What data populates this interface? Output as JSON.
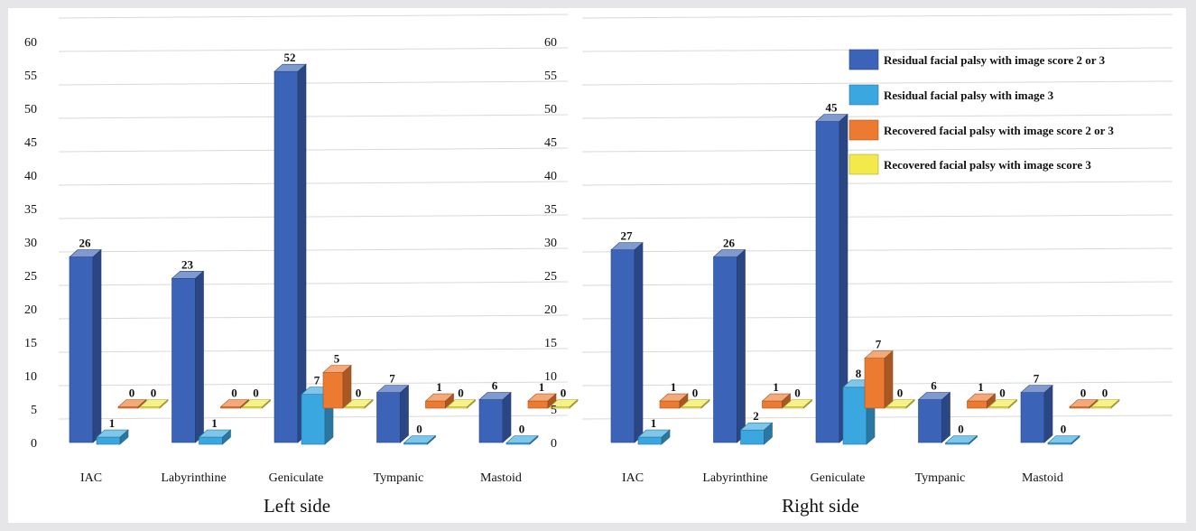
{
  "chart_data": [
    {
      "type": "bar",
      "title": "Left side",
      "categories": [
        "IAC",
        "Labyrinthine",
        "Geniculate",
        "Tympanic",
        "Mastoid"
      ],
      "ylim": [
        0,
        60
      ],
      "yticks": [
        0,
        5,
        10,
        15,
        20,
        25,
        30,
        35,
        40,
        45,
        50,
        55,
        60
      ],
      "grid": true,
      "series": [
        {
          "name": "Residual facial palsy with image score 2 or 3",
          "color": "#3b63b7",
          "values": [
            26,
            23,
            52,
            7,
            6
          ]
        },
        {
          "name": "Residual facial palsy with image 3",
          "color": "#3aa7e0",
          "values": [
            1,
            1,
            7,
            0,
            0
          ]
        },
        {
          "name": "Recovered facial palsy with image score 2 or 3",
          "color": "#ec7a30",
          "values": [
            0,
            0,
            5,
            1,
            1
          ]
        },
        {
          "name": "Recovered facial palsy with image score 3",
          "color": "#f3e94a",
          "values": [
            0,
            0,
            0,
            0,
            0
          ]
        }
      ]
    },
    {
      "type": "bar",
      "title": "Right side",
      "categories": [
        "IAC",
        "Labyrinthine",
        "Geniculate",
        "Tympanic",
        "Mastoid"
      ],
      "ylim": [
        0,
        60
      ],
      "yticks": [
        0,
        5,
        10,
        15,
        20,
        25,
        30,
        35,
        40,
        45,
        50,
        55,
        60
      ],
      "grid": true,
      "legend_position": "top-right",
      "series": [
        {
          "name": "Residual facial palsy with image score 2 or 3",
          "color": "#3b63b7",
          "values": [
            27,
            26,
            45,
            6,
            7
          ]
        },
        {
          "name": "Residual facial palsy with image 3",
          "color": "#3aa7e0",
          "values": [
            1,
            2,
            8,
            0,
            0
          ]
        },
        {
          "name": "Recovered facial palsy with image score 2 or 3",
          "color": "#ec7a30",
          "values": [
            1,
            1,
            7,
            1,
            0
          ]
        },
        {
          "name": "Recovered facial palsy with image score 3",
          "color": "#f3e94a",
          "values": [
            0,
            0,
            0,
            0,
            0
          ]
        }
      ]
    }
  ]
}
